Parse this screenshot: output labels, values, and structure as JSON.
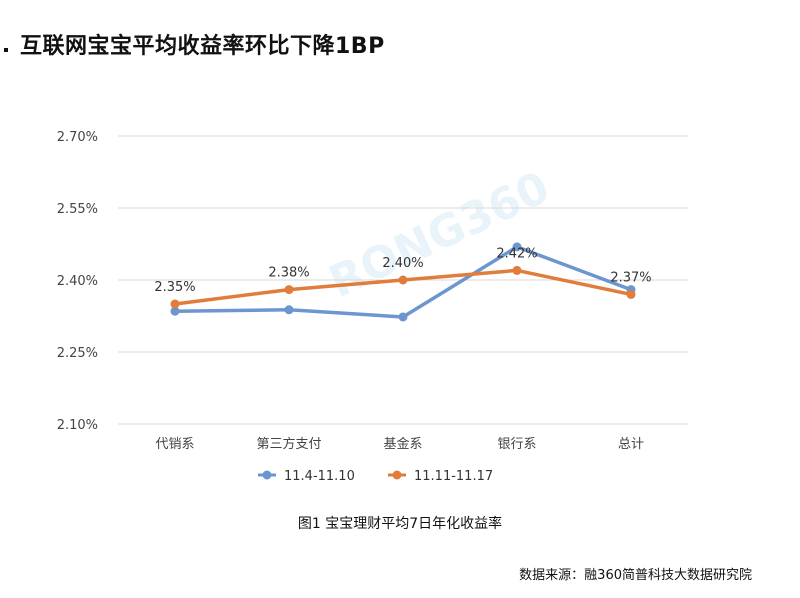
{
  "title": "互联网宝宝平均收益率环比下降1BP",
  "caption": "图1 宝宝理财平均7日年化收益率",
  "source": "数据来源：融360简普科技大数据研究院",
  "watermark": "RONG360",
  "colors": {
    "series1": "#6b96cf",
    "series2": "#e07c3c",
    "grid": "#d9d9d9"
  },
  "chart_data": {
    "type": "line",
    "categories": [
      "代销系",
      "第三方支付",
      "基金系",
      "银行系",
      "总计"
    ],
    "series": [
      {
        "name": "11.4-11.10",
        "values": [
          2.335,
          2.338,
          2.323,
          2.469,
          2.38
        ]
      },
      {
        "name": "11.11-11.17",
        "values": [
          2.35,
          2.38,
          2.4,
          2.42,
          2.37
        ]
      }
    ],
    "data_labels": [
      "2.35%",
      "2.38%",
      "2.40%",
      "2.42%",
      "2.37%"
    ],
    "ylim": [
      2.1,
      2.7
    ],
    "yticks": [
      2.1,
      2.25,
      2.4,
      2.55,
      2.7
    ],
    "ytick_labels": [
      "2.10%",
      "2.25%",
      "2.40%",
      "2.55%",
      "2.70%"
    ],
    "grid": true,
    "legend": "bottom"
  }
}
